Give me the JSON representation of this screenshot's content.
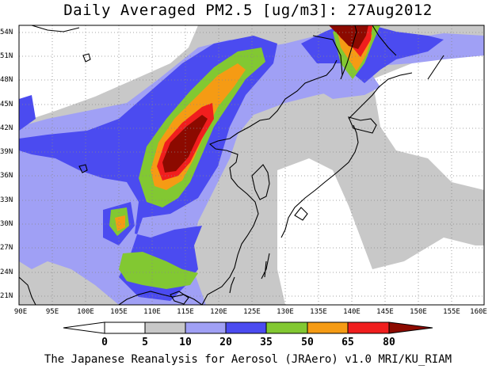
{
  "title": "Daily Averaged PM2.5 [ug/m3]: 27Aug2012",
  "footer": "The Japanese Reanalysis for Aerosol (JRAero) v1.0 MRI/KU_RIAM",
  "map": {
    "lat_labels": [
      "54N",
      "51N",
      "48N",
      "45N",
      "42N",
      "39N",
      "36N",
      "33N",
      "30N",
      "27N",
      "24N",
      "21N"
    ],
    "lon_labels": [
      "90E",
      "95E",
      "100E",
      "105E",
      "110E",
      "115E",
      "120E",
      "125E",
      "130E",
      "135E",
      "140E",
      "145E",
      "150E",
      "155E",
      "160E"
    ],
    "lat_range": [
      20,
      55
    ],
    "lon_range": [
      90,
      160
    ],
    "gridlines": true
  },
  "colorbar": {
    "levels": [
      "0",
      "5",
      "10",
      "20",
      "35",
      "50",
      "65",
      "80"
    ],
    "colors": [
      "#ffffff",
      "#c8c8c8",
      "#a0a0f5",
      "#4b4bf0",
      "#82c832",
      "#f59b14",
      "#f01e1e",
      "#8c0a00"
    ]
  }
}
